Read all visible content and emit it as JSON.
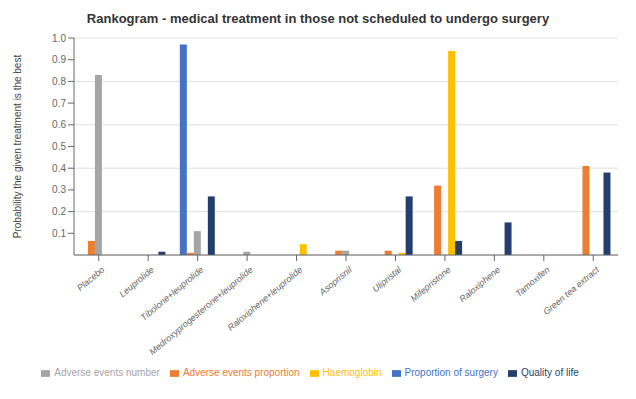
{
  "chart_data": {
    "type": "bar",
    "title": "Rankogram - medical treatment in those not scheduled to undergo surgery",
    "ylabel": "Probability the given treatment is the best",
    "categories": [
      "Placebo",
      "Leuprolide",
      "Tibolone+leuprolide",
      "Medroxyprogesterone+leuprolide",
      "Raloxiphene+leuprolide",
      "Asoprisnil",
      "Ulipristal",
      "Mifepristone",
      "Raloxiphene",
      "Tamoxifen",
      "Green tea extract"
    ],
    "series": [
      {
        "name": "Proportion of surgery",
        "color": "#4472C4",
        "values": [
          0.0,
          0.0,
          0.97,
          0.0,
          0.0,
          0.0,
          0.0,
          0.0,
          0.0,
          0.0,
          0.0
        ]
      },
      {
        "name": "Adverse events proportion",
        "color": "#ED7D31",
        "values": [
          0.065,
          0.0,
          0.01,
          0.0,
          0.0,
          0.02,
          0.02,
          0.32,
          0.0,
          0.0,
          0.41
        ]
      },
      {
        "name": "Adverse events number",
        "color": "#A5A5A5",
        "values": [
          0.83,
          0.0,
          0.11,
          0.015,
          0.0,
          0.02,
          0.0,
          0.0,
          0.0,
          0.0,
          0.0
        ]
      },
      {
        "name": "Haemoglobin",
        "color": "#FFC000",
        "values": [
          0.0,
          0.0,
          0.0,
          0.0,
          0.05,
          0.0,
          0.01,
          0.94,
          0.0,
          0.0,
          0.0
        ]
      },
      {
        "name": "Quality of life",
        "color": "#243F6E",
        "values": [
          0.0,
          0.015,
          0.27,
          0.0,
          0.0,
          0.0,
          0.27,
          0.065,
          0.15,
          0.0,
          0.38
        ]
      }
    ],
    "ylim": [
      0,
      1
    ],
    "yticks": [
      0.1,
      0.2,
      0.3,
      0.4,
      0.5,
      0.6,
      0.7,
      0.8,
      0.9,
      {
        "value": 1,
        "label": "1.0"
      }
    ],
    "grid": true,
    "legend": "bottom"
  }
}
